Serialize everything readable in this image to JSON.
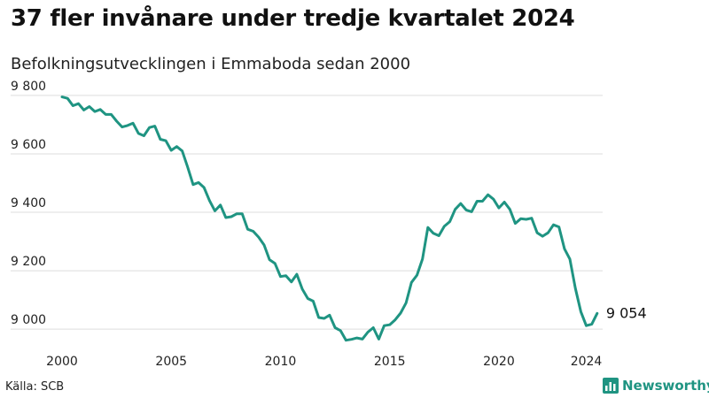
{
  "header": {
    "title": "37 fler invånare under tredje kvartalet 2024",
    "subtitle": "Befolkningsutvecklingen i Emmaboda sedan 2000"
  },
  "footer": {
    "source": "Källa: SCB",
    "brand_name": "Newsworthy",
    "brand_icon": "bar-chart-icon"
  },
  "colors": {
    "line": "#1f9482",
    "grid": "#dddddd",
    "brand_icon": "#1f9482",
    "brand_text": "#1f9482"
  },
  "chart_data": {
    "type": "line",
    "title": "37 fler invånare under tredje kvartalet 2024",
    "subtitle": "Befolkningsutvecklingen i Emmaboda sedan 2000",
    "xlabel": "",
    "ylabel": "",
    "frequency": "quarterly",
    "x_start": "2000 Q1",
    "x_end": "2024 Q3",
    "xlim": [
      2000,
      2024.75
    ],
    "ylim": [
      8940,
      9830
    ],
    "yticks": [
      9000,
      9200,
      9400,
      9600,
      9800
    ],
    "ytick_labels": [
      "9 000",
      "9 200",
      "9 400",
      "9 600",
      "9 800"
    ],
    "xticks": [
      2000,
      2005,
      2010,
      2015,
      2020,
      2024
    ],
    "xtick_labels": [
      "2000",
      "2005",
      "2010",
      "2015",
      "2020",
      "2024"
    ],
    "grid": "horizontal",
    "legend": "none",
    "end_label": "9 054",
    "series": [
      {
        "values": [
          9795,
          9790,
          9765,
          9772,
          9750,
          9762,
          9745,
          9752,
          9735,
          9735,
          9712,
          9692,
          9697,
          9705,
          9670,
          9662,
          9690,
          9695,
          9650,
          9645,
          9612,
          9625,
          9610,
          9555,
          9495,
          9502,
          9485,
          9440,
          9405,
          9425,
          9382,
          9385,
          9395,
          9395,
          9342,
          9335,
          9315,
          9288,
          9238,
          9225,
          9180,
          9183,
          9162,
          9188,
          9137,
          9105,
          9096,
          9040,
          9037,
          9048,
          9005,
          8995,
          8962,
          8965,
          8970,
          8966,
          8990,
          9005,
          8966,
          9012,
          9015,
          9032,
          9055,
          9090,
          9160,
          9185,
          9240,
          9348,
          9328,
          9320,
          9352,
          9368,
          9410,
          9430,
          9408,
          9402,
          9438,
          9438,
          9460,
          9445,
          9415,
          9435,
          9410,
          9362,
          9378,
          9376,
          9380,
          9330,
          9318,
          9330,
          9357,
          9350,
          9275,
          9240,
          9140,
          9060,
          9012,
          9017,
          9054
        ]
      }
    ]
  }
}
